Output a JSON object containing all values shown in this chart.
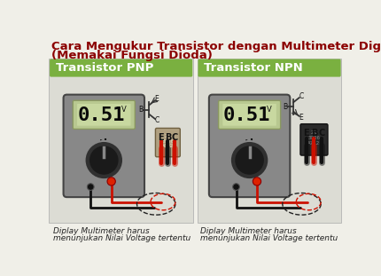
{
  "title_line1": "Cara Mengukur Transistor dengan Multimeter Digital",
  "title_line2": "(Memakai Fungsi Dioda)",
  "title_color": "#8B0000",
  "bg_color": "#f0efe8",
  "left_label": "Transistor PNP",
  "right_label": "Transistor NPN",
  "label_bg": "#7ab040",
  "label_text_color": "#ffffff",
  "display_value": "0.51",
  "display_unit": "V",
  "caption_line1": "Diplay Multimeter harus",
  "caption_line2": "menunjukan Nilai Voltage tertentu",
  "meter_body_color": "#888888",
  "meter_body_dark": "#6a6a6a",
  "meter_screen_color": "#c8d8a0",
  "meter_screen_border": "#a0aa70",
  "knob_color": "#303030",
  "knob_dark": "#1a1a1a",
  "wire_red_color": "#cc1100",
  "wire_black_color": "#111111",
  "dashed_red": "#cc1100",
  "dashed_black": "#222222",
  "transistor_pnp_color": "#c0b090",
  "transistor_npn_color": "#282828",
  "port_black_color": "#111111",
  "port_red_color": "#dd2200"
}
